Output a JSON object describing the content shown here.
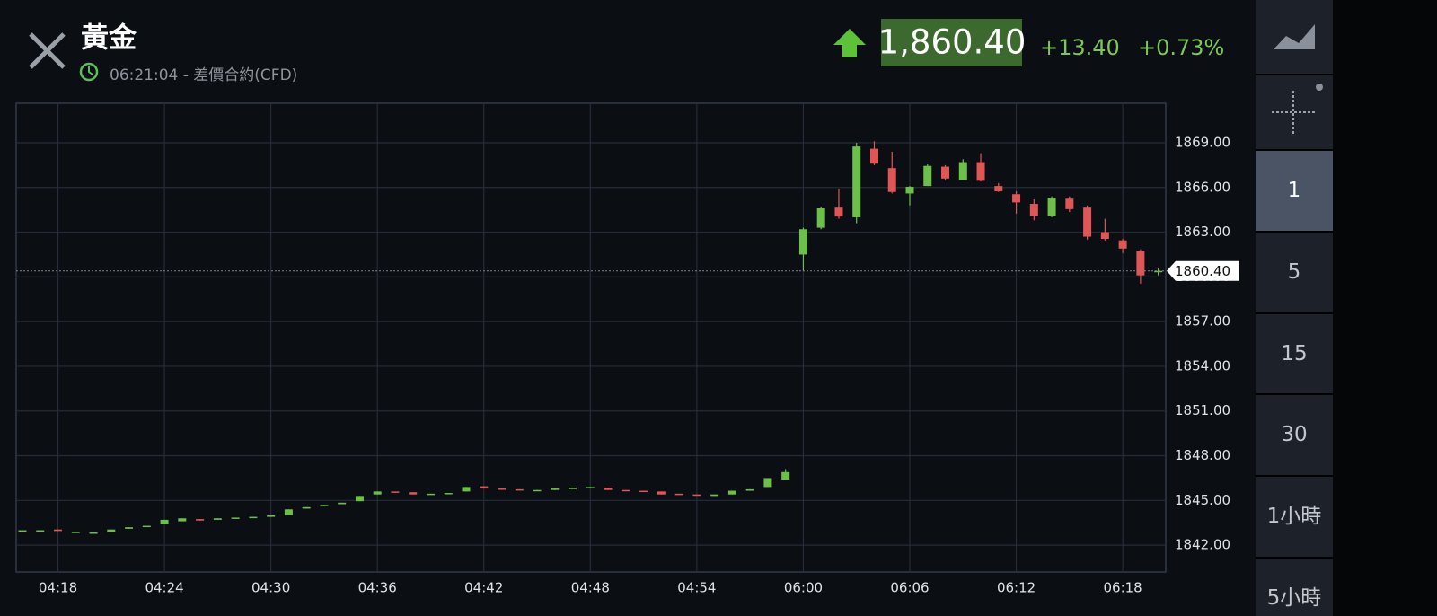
{
  "header": {
    "title": "黃金",
    "subtitle": "06:21:04 - 差價合約(CFD)",
    "price": "1,860.40",
    "change": "+13.40",
    "change_percent": "+0.73%"
  },
  "side_menu": {
    "intervals": [
      "1",
      "5",
      "15",
      "30",
      "1小時",
      "5小時"
    ],
    "selected": "1"
  },
  "chart_data": {
    "type": "candlestick",
    "categories": [
      null,
      null,
      "04:18",
      null,
      null,
      null,
      null,
      null,
      "04:24",
      null,
      null,
      null,
      null,
      null,
      "04:30",
      null,
      null,
      null,
      null,
      null,
      "04:36",
      null,
      null,
      null,
      null,
      null,
      "04:42",
      null,
      null,
      null,
      null,
      null,
      "04:48",
      null,
      null,
      null,
      null,
      null,
      "04:54",
      null,
      null,
      null,
      null,
      null,
      "06:00",
      null,
      null,
      null,
      null,
      null,
      "06:06",
      null,
      null,
      null,
      null,
      null,
      "06:12",
      null,
      null,
      null,
      null,
      null,
      "06:18",
      null,
      null
    ],
    "open": [
      1843.0,
      1843.0,
      1843.05,
      1842.9,
      1842.85,
      1842.9,
      1843.1,
      1843.3,
      1843.4,
      1843.6,
      1843.75,
      1843.7,
      1843.8,
      1843.85,
      1843.9,
      1844.0,
      1844.45,
      1844.6,
      1844.75,
      1844.95,
      1845.4,
      1845.6,
      1845.55,
      1845.4,
      1845.45,
      1845.6,
      1845.95,
      1845.8,
      1845.75,
      1845.65,
      1845.7,
      1845.8,
      1845.85,
      1845.85,
      1845.7,
      1845.65,
      1845.6,
      1845.45,
      1845.4,
      1845.3,
      1845.4,
      1845.65,
      1845.9,
      1846.4,
      1861.5,
      1863.3,
      1864.65,
      1864.0,
      1868.6,
      1867.3,
      1865.6,
      1866.1,
      1867.4,
      1866.5,
      1867.7,
      1866.1,
      1865.55,
      1864.9,
      1864.1,
      1865.25,
      1864.65,
      1863.0,
      1862.45,
      1861.75,
      1860.35
    ],
    "high": [
      1843.0,
      1843.0,
      1843.05,
      1842.9,
      1842.85,
      1843.05,
      1843.2,
      1843.3,
      1843.7,
      1843.8,
      1843.75,
      1843.8,
      1843.85,
      1843.9,
      1844.0,
      1844.4,
      1844.55,
      1844.7,
      1844.85,
      1845.3,
      1845.6,
      1845.6,
      1845.55,
      1845.45,
      1845.5,
      1845.9,
      1845.95,
      1845.8,
      1845.75,
      1845.7,
      1845.8,
      1845.85,
      1845.9,
      1845.85,
      1845.7,
      1845.65,
      1845.6,
      1845.45,
      1845.4,
      1845.4,
      1845.65,
      1845.75,
      1846.5,
      1847.1,
      1863.3,
      1864.7,
      1865.9,
      1869.0,
      1869.1,
      1868.4,
      1866.1,
      1867.55,
      1867.5,
      1867.9,
      1868.3,
      1866.3,
      1865.75,
      1865.2,
      1865.4,
      1865.4,
      1864.8,
      1863.9,
      1862.55,
      1861.85,
      1860.6
    ],
    "low": [
      1843.0,
      1843.0,
      1842.95,
      1842.9,
      1842.85,
      1842.9,
      1843.1,
      1843.3,
      1843.4,
      1843.6,
      1843.65,
      1843.7,
      1843.8,
      1843.85,
      1843.9,
      1844.0,
      1844.45,
      1844.6,
      1844.75,
      1844.95,
      1845.4,
      1845.55,
      1845.4,
      1845.4,
      1845.45,
      1845.6,
      1845.8,
      1845.75,
      1845.7,
      1845.65,
      1845.7,
      1845.8,
      1845.85,
      1845.7,
      1845.65,
      1845.6,
      1845.4,
      1845.4,
      1845.35,
      1845.3,
      1845.4,
      1845.65,
      1845.9,
      1846.4,
      1860.4,
      1863.2,
      1863.9,
      1863.6,
      1867.5,
      1865.6,
      1864.8,
      1866.1,
      1866.5,
      1866.5,
      1866.4,
      1865.7,
      1864.25,
      1863.8,
      1864.0,
      1864.35,
      1862.5,
      1862.45,
      1861.6,
      1859.55,
      1860.1
    ],
    "close": [
      1843.0,
      1843.0,
      1842.95,
      1842.9,
      1842.85,
      1843.05,
      1843.2,
      1843.3,
      1843.7,
      1843.8,
      1843.65,
      1843.8,
      1843.85,
      1843.9,
      1844.0,
      1844.4,
      1844.55,
      1844.7,
      1844.85,
      1845.3,
      1845.6,
      1845.55,
      1845.4,
      1845.45,
      1845.5,
      1845.9,
      1845.8,
      1845.75,
      1845.7,
      1845.7,
      1845.8,
      1845.85,
      1845.9,
      1845.7,
      1845.65,
      1845.6,
      1845.4,
      1845.4,
      1845.35,
      1845.4,
      1845.65,
      1845.75,
      1846.5,
      1846.9,
      1863.2,
      1864.6,
      1864.05,
      1868.75,
      1867.6,
      1865.7,
      1866.05,
      1867.45,
      1866.6,
      1867.7,
      1866.45,
      1865.75,
      1865.0,
      1864.1,
      1865.3,
      1864.55,
      1862.7,
      1862.55,
      1861.9,
      1860.1,
      1860.4
    ],
    "up_color": "#6cc04a",
    "down_color": "#e05656",
    "ylim": [
      1840.2,
      1871.65
    ],
    "yticks": [
      {
        "value": 1842,
        "label": "1842.00"
      },
      {
        "value": 1845,
        "label": "1845.00"
      },
      {
        "value": 1848,
        "label": "1848.00"
      },
      {
        "value": 1851,
        "label": "1851.00"
      },
      {
        "value": 1854,
        "label": "1854.00"
      },
      {
        "value": 1857,
        "label": "1857.00"
      },
      {
        "value": 1860,
        "label": "1860.00"
      },
      {
        "value": 1863,
        "label": "1863.00"
      },
      {
        "value": 1866,
        "label": "1866.00"
      },
      {
        "value": 1869,
        "label": "1869.00"
      }
    ],
    "last_price": {
      "value": 1860.4,
      "label": "1860.40"
    },
    "grid": true
  }
}
